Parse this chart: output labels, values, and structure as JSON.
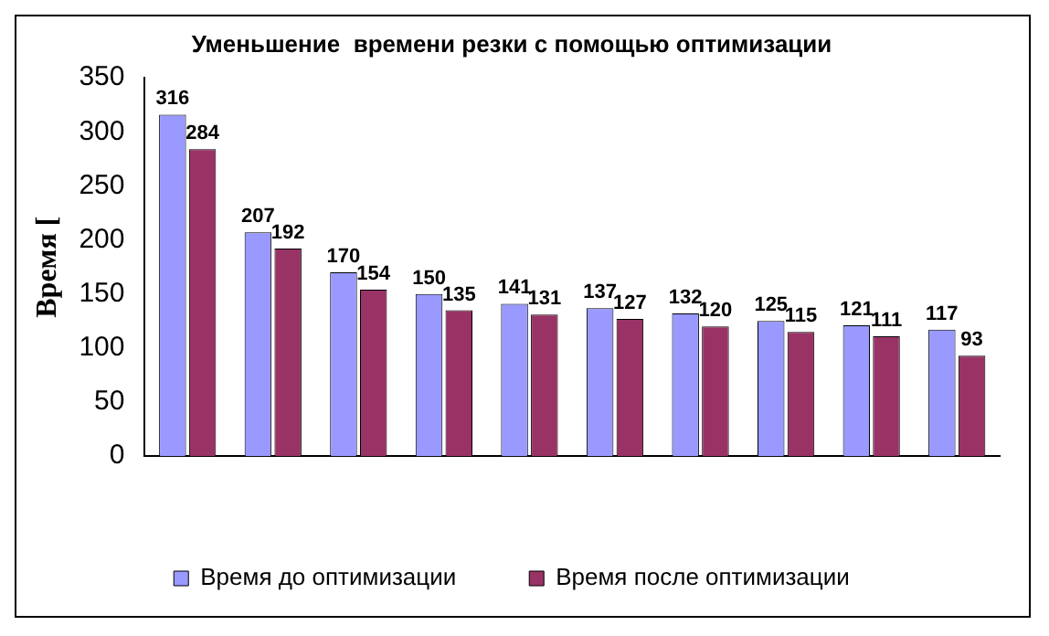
{
  "chart_data": {
    "type": "bar",
    "title": "Уменьшение  времени резки с помощью оптимизации",
    "ylabel": "Время [",
    "categories": [
      null,
      null,
      null,
      null,
      null,
      null,
      null,
      null,
      null,
      null
    ],
    "series": [
      {
        "name": "Время до оптимизации",
        "color": "#9999ff",
        "values": [
          316,
          207,
          170,
          150,
          141,
          137,
          132,
          125,
          121,
          117
        ]
      },
      {
        "name": "Время после оптимизации",
        "color": "#993366",
        "values": [
          284,
          192,
          154,
          135,
          131,
          127,
          120,
          115,
          111,
          93
        ]
      }
    ],
    "ylim": [
      0,
      350
    ],
    "yticks": [
      0,
      50,
      100,
      150,
      200,
      250,
      300,
      350
    ],
    "grid": false,
    "legend": "bottom",
    "data_labels": true
  }
}
